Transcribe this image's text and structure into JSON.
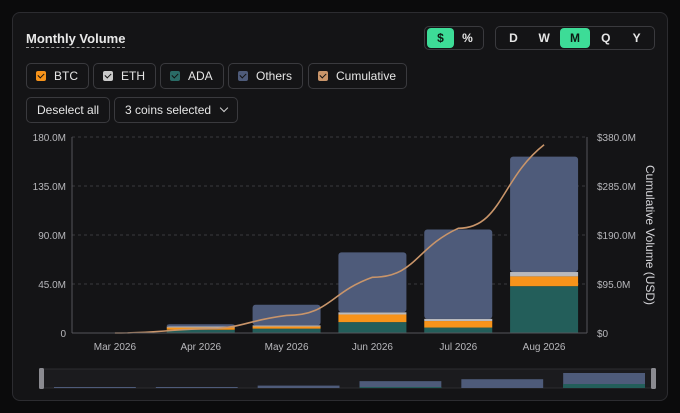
{
  "title": "Monthly Volume",
  "unit_toggle": [
    {
      "label": "$",
      "active": true
    },
    {
      "label": "%",
      "active": false
    }
  ],
  "period_toggle": [
    {
      "label": "D",
      "active": false
    },
    {
      "label": "W",
      "active": false
    },
    {
      "label": "M",
      "active": true
    },
    {
      "label": "Q",
      "active": false
    },
    {
      "label": "Y",
      "active": false
    }
  ],
  "legend_chips": [
    {
      "label": "BTC",
      "color": "#f7931a"
    },
    {
      "label": "ETH",
      "color": "#c9c9c9"
    },
    {
      "label": "ADA",
      "color": "#2a6b66"
    },
    {
      "label": "Others",
      "color": "#4e5b7a"
    },
    {
      "label": "Cumulative",
      "color": "#c9956a"
    }
  ],
  "deselect_label": "Deselect all",
  "coins_selected_label": "3 coins selected",
  "colors": {
    "accent": "#3ddc97",
    "BTC": "#f7931a",
    "ETH": "#b9b9bd",
    "ADA": "#235e5a",
    "Others": "#4e5b7a",
    "Cumulative": "#c9956a"
  },
  "chart_data": {
    "type": "bar",
    "stacked": true,
    "categories": [
      "Mar 2026",
      "Apr 2026",
      "May 2026",
      "Jun 2026",
      "Jul 2026",
      "Aug 2026"
    ],
    "series": [
      {
        "name": "ADA",
        "values": [
          0,
          3,
          4,
          10,
          5,
          43
        ]
      },
      {
        "name": "BTC",
        "values": [
          0,
          2,
          2,
          7,
          6,
          9
        ]
      },
      {
        "name": "ETH",
        "values": [
          0,
          1,
          1,
          2,
          2,
          4
        ]
      },
      {
        "name": "Others",
        "values": [
          0,
          2,
          19,
          55,
          82,
          106
        ]
      }
    ],
    "line_series": {
      "name": "Cumulative",
      "axis": "right",
      "x": [
        0,
        1,
        2,
        3,
        4,
        5
      ],
      "values": [
        0,
        8,
        34,
        108,
        203,
        365
      ]
    },
    "y_left": {
      "ylim": [
        0,
        180
      ],
      "ticks": [
        "0",
        "45.0M",
        "90.0M",
        "135.0M",
        "180.0M"
      ]
    },
    "y_right": {
      "label": "Cumulative Volume (USD)",
      "ylim": [
        0,
        380
      ],
      "ticks": [
        "$0",
        "$95.0M",
        "$190.0M",
        "$285.0M",
        "$380.0M"
      ]
    },
    "grid": "horizontal dashed"
  }
}
